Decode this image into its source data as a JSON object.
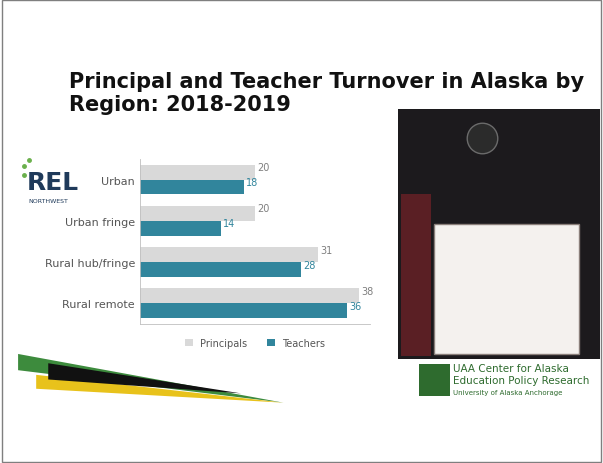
{
  "chart_data": {
    "type": "bar",
    "orientation": "horizontal",
    "title": "Principal and Teacher Turnover in Alaska by Region: 2018-2019",
    "categories": [
      "Urban",
      "Urban fringe",
      "Rural hub/fringe",
      "Rural remote"
    ],
    "series": [
      {
        "name": "Principals",
        "color": "#d9d9d9",
        "values": [
          20,
          20,
          31,
          38
        ]
      },
      {
        "name": "Teachers",
        "color": "#31859c",
        "values": [
          18,
          14,
          28,
          36
        ]
      }
    ],
    "xlim": [
      0,
      40
    ],
    "data_labels": true,
    "tick_labels": "y",
    "legend": "lower center",
    "grid": false,
    "annotations": [
      "REL",
      "NORTHWEST",
      "UAA Center for Alaska",
      "Education Policy Research",
      "University of Alaska Anchorage"
    ]
  }
}
